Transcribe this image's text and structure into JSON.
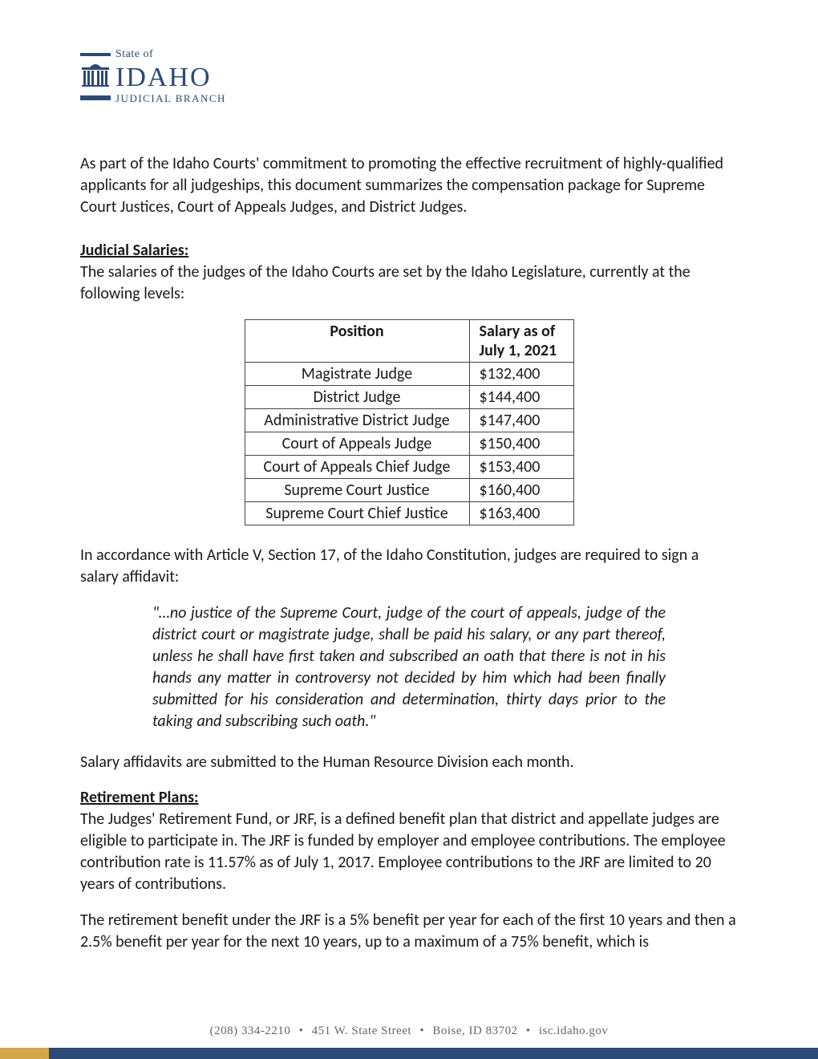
{
  "logo": {
    "state_of": "State of",
    "idaho": "IDAHO",
    "judicial_branch": "JUDICIAL BRANCH",
    "color_navy": "#2b4a75",
    "color_gold": "#d4a84a"
  },
  "intro": "As part of the Idaho Courts' commitment to promoting the effective recruitment of highly-qualified applicants for all judgeships, this document summarizes the compensation package for Supreme Court Justices, Court of Appeals Judges, and District Judges.",
  "salaries": {
    "heading": "Judicial Salaries:",
    "intro": "The salaries of the judges of the Idaho Courts are set by the Idaho Legislature, currently at the following levels:",
    "table": {
      "col_position": "Position",
      "col_salary_l1": "Salary as of",
      "col_salary_l2": "July 1, 2021",
      "rows": [
        {
          "position": "Magistrate Judge",
          "salary": "$132,400"
        },
        {
          "position": "District Judge",
          "salary": "$144,400"
        },
        {
          "position": "Administrative District Judge",
          "salary": "$147,400"
        },
        {
          "position": "Court of Appeals Judge",
          "salary": "$150,400"
        },
        {
          "position": "Court of Appeals Chief Judge",
          "salary": "$153,400"
        },
        {
          "position": "Supreme Court Justice",
          "salary": "$160,400"
        },
        {
          "position": "Supreme Court Chief Justice",
          "salary": "$163,400"
        }
      ]
    },
    "affidavit_intro": "In accordance with Article V, Section 17, of the Idaho Constitution, judges are required to sign a salary affidavit:",
    "quote": "\"…no justice of the Supreme Court, judge of the court of appeals, judge of the district court or magistrate judge, shall be paid his salary, or any part thereof, unless he shall have first taken and subscribed an oath that there is not in his hands any matter in controversy not decided by him which had been finally submitted for his consideration and determination, thirty days prior to the taking and subscribing such oath.\"",
    "affidavit_outro": "Salary affidavits are submitted to the Human Resource Division each month."
  },
  "retirement": {
    "heading": "Retirement Plans:",
    "p1": "The Judges' Retirement Fund, or JRF, is a defined benefit plan that district and appellate judges are eligible to participate in.  The JRF is funded by employer and employee contributions.  The employee contribution rate is 11.57% as of July 1, 2017. Employee contributions to the JRF are limited to 20 years of contributions.",
    "p2": "The retirement benefit under the JRF is a 5% benefit per year for each of the first 10 years and then a 2.5% benefit per year for the next 10 years, up to a maximum of a 75% benefit, which is"
  },
  "footer": {
    "phone": "(208) 334-2210",
    "address": "451 W. State Street",
    "city": "Boise, ID 83702",
    "site": "isc.idaho.gov"
  }
}
